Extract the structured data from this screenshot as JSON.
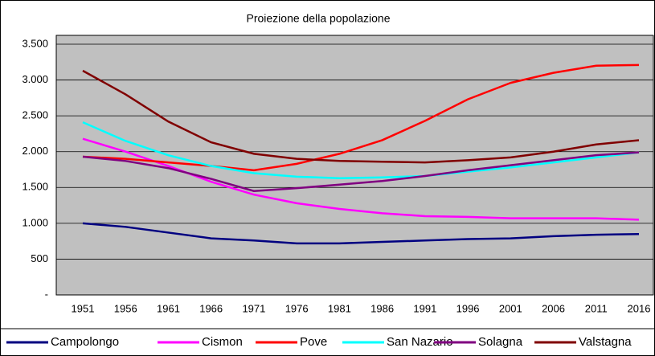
{
  "chart_data": {
    "type": "line",
    "title": "Proiezione della popolazione",
    "categories": [
      "1951",
      "1956",
      "1961",
      "1966",
      "1971",
      "1976",
      "1981",
      "1986",
      "1991",
      "1996",
      "2001",
      "2006",
      "2011",
      "2016"
    ],
    "series": [
      {
        "name": "Campolongo",
        "color": "#000080",
        "values": [
          1000,
          950,
          870,
          790,
          760,
          720,
          720,
          740,
          760,
          780,
          790,
          820,
          840,
          850
        ]
      },
      {
        "name": "Cismon",
        "color": "#ff00ff",
        "values": [
          2180,
          2000,
          1800,
          1580,
          1400,
          1280,
          1200,
          1140,
          1100,
          1090,
          1070,
          1070,
          1070,
          1050
        ]
      },
      {
        "name": "Pove",
        "color": "#ff0000",
        "values": [
          1930,
          1900,
          1850,
          1800,
          1740,
          1830,
          1970,
          2160,
          2430,
          2730,
          2960,
          3100,
          3200,
          3210
        ]
      },
      {
        "name": "San Nazario",
        "color": "#00ffff",
        "values": [
          2410,
          2150,
          1950,
          1800,
          1700,
          1650,
          1630,
          1640,
          1660,
          1720,
          1780,
          1850,
          1920,
          1990
        ]
      },
      {
        "name": "Solagna",
        "color": "#800080",
        "values": [
          1930,
          1870,
          1770,
          1620,
          1450,
          1490,
          1540,
          1590,
          1660,
          1740,
          1810,
          1880,
          1950,
          1990
        ]
      },
      {
        "name": "Valstagna",
        "color": "#800000",
        "values": [
          3130,
          2800,
          2420,
          2130,
          1970,
          1900,
          1870,
          1860,
          1850,
          1880,
          1920,
          2000,
          2100,
          2160
        ]
      }
    ],
    "ylim": [
      0,
      3500
    ],
    "yticks": [
      {
        "value": 0,
        "label": "-"
      },
      500,
      {
        "value": 1000,
        "label": "1.000"
      },
      {
        "value": 1500,
        "label": "1.500"
      },
      {
        "value": 2000,
        "label": "2.000"
      },
      {
        "value": 2500,
        "label": "2.500"
      },
      {
        "value": 3000,
        "label": "3.000"
      },
      {
        "value": 3500,
        "label": "3.500"
      }
    ],
    "grid": true,
    "plot_background": "#c0c0c0",
    "legend": "bottom"
  }
}
